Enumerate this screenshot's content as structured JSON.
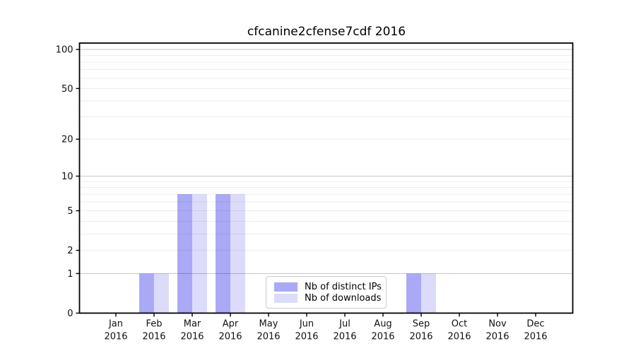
{
  "chart_data": {
    "type": "bar",
    "title": "cfcanine2cfense7cdf 2016",
    "categories": [
      "Jan",
      "Feb",
      "Mar",
      "Apr",
      "May",
      "Jun",
      "Jul",
      "Aug",
      "Sep",
      "Oct",
      "Nov",
      "Dec"
    ],
    "category_year": "2016",
    "series": [
      {
        "name": "Nb of distinct IPs",
        "color": "#a9a9f6",
        "values": [
          0,
          1,
          7,
          7,
          0,
          0,
          0,
          0,
          1,
          0,
          0,
          0
        ]
      },
      {
        "name": "Nb of downloads",
        "color": "#dcdcfa",
        "values": [
          0,
          1,
          7,
          7,
          0,
          0,
          0,
          0,
          1,
          0,
          0,
          0
        ]
      }
    ],
    "xlabel": "",
    "ylabel": "",
    "y_scale": "log10(1+x)",
    "ylim": [
      0,
      112
    ],
    "y_tick_labels": [
      0,
      1,
      2,
      5,
      10,
      20,
      50,
      100
    ],
    "major_gridlines": [
      1,
      10,
      100
    ],
    "minor_gridlines": [
      2,
      3,
      4,
      5,
      6,
      7,
      8,
      9,
      20,
      30,
      40,
      50,
      60,
      70,
      80,
      90
    ],
    "grid": true,
    "legend_position": "lower center",
    "colors": {
      "axis": "#000000",
      "text": "#111111",
      "major_grid": "rgba(0,0,0,0.22)",
      "minor_grid": "rgba(0,0,0,0.07)",
      "legend_border": "#cccccc",
      "background": "#ffffff"
    }
  }
}
